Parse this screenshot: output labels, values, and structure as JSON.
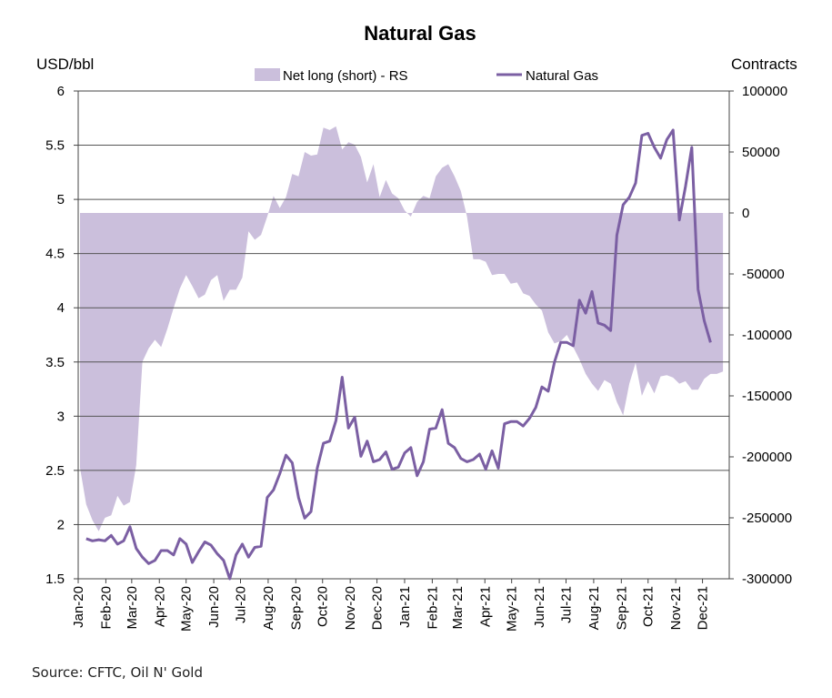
{
  "chart_data": {
    "type": "area+line",
    "title": "Natural Gas",
    "source": "Source: CFTC, Oil N' Gold",
    "left_axis": {
      "label": "USD/bbl",
      "range": [
        1.5,
        6
      ],
      "ticks": [
        "1.5",
        "2",
        "2.5",
        "3",
        "3.5",
        "4",
        "4.5",
        "5",
        "5.5",
        "6"
      ]
    },
    "right_axis": {
      "label": "Contracts",
      "range": [
        -300000,
        100000
      ],
      "ticks": [
        "-300000",
        "-250000",
        "-200000",
        "-150000",
        "-100000",
        "-50000",
        "0",
        "50000",
        "100000"
      ]
    },
    "x_axis": {
      "range": [
        "2020-01-01",
        "2021-12-31"
      ],
      "labels": [
        "Jan-20",
        "Feb-20",
        "Mar-20",
        "Apr-20",
        "May-20",
        "Jun-20",
        "Jul-20",
        "Aug-20",
        "Sep-20",
        "Oct-20",
        "Nov-20",
        "Dec-20",
        "Jan-21",
        "Feb-21",
        "Mar-21",
        "Apr-21",
        "May-21",
        "Jun-21",
        "Jul-21",
        "Aug-21",
        "Sep-21",
        "Oct-21",
        "Nov-21",
        "Dec-21"
      ]
    },
    "grid": "horizontal",
    "legend_position": "top",
    "colors": {
      "area": "#cbbfdc",
      "line": "#7b5fa3",
      "grid": "#555555"
    },
    "series": [
      {
        "name": "Net long (short) - RS",
        "type": "area",
        "axis": "right",
        "points": [
          [
            "2020-01-03",
            -209000
          ],
          [
            "2020-01-10",
            -239000
          ],
          [
            "2020-01-17",
            -252000
          ],
          [
            "2020-01-24",
            -261000
          ],
          [
            "2020-01-31",
            -250000
          ],
          [
            "2020-02-07",
            -248000
          ],
          [
            "2020-02-14",
            -232000
          ],
          [
            "2020-02-21",
            -240000
          ],
          [
            "2020-02-28",
            -237000
          ],
          [
            "2020-03-06",
            -207000
          ],
          [
            "2020-03-13",
            -122000
          ],
          [
            "2020-03-20",
            -111000
          ],
          [
            "2020-03-27",
            -104000
          ],
          [
            "2020-04-03",
            -110000
          ],
          [
            "2020-04-10",
            -95000
          ],
          [
            "2020-04-17",
            -78000
          ],
          [
            "2020-04-24",
            -62000
          ],
          [
            "2020-05-01",
            -51000
          ],
          [
            "2020-05-08",
            -60000
          ],
          [
            "2020-05-15",
            -70000
          ],
          [
            "2020-05-22",
            -67000
          ],
          [
            "2020-05-29",
            -55000
          ],
          [
            "2020-06-05",
            -51000
          ],
          [
            "2020-06-12",
            -72000
          ],
          [
            "2020-06-19",
            -63000
          ],
          [
            "2020-06-26",
            -63000
          ],
          [
            "2020-07-03",
            -53000
          ],
          [
            "2020-07-10",
            -15000
          ],
          [
            "2020-07-17",
            -22000
          ],
          [
            "2020-07-24",
            -18000
          ],
          [
            "2020-07-31",
            -3000
          ],
          [
            "2020-08-07",
            14000
          ],
          [
            "2020-08-14",
            4000
          ],
          [
            "2020-08-21",
            13000
          ],
          [
            "2020-08-28",
            32000
          ],
          [
            "2020-09-04",
            30000
          ],
          [
            "2020-09-11",
            50000
          ],
          [
            "2020-09-18",
            47000
          ],
          [
            "2020-09-25",
            48000
          ],
          [
            "2020-10-02",
            70000
          ],
          [
            "2020-10-09",
            68000
          ],
          [
            "2020-10-16",
            71000
          ],
          [
            "2020-10-23",
            52000
          ],
          [
            "2020-10-30",
            58000
          ],
          [
            "2020-11-06",
            56000
          ],
          [
            "2020-11-13",
            46000
          ],
          [
            "2020-11-20",
            25000
          ],
          [
            "2020-11-27",
            40000
          ],
          [
            "2020-12-04",
            13000
          ],
          [
            "2020-12-11",
            27000
          ],
          [
            "2020-12-18",
            16000
          ],
          [
            "2020-12-25",
            12000
          ],
          [
            "2021-01-01",
            2000
          ],
          [
            "2021-01-08",
            -3000
          ],
          [
            "2021-01-15",
            9000
          ],
          [
            "2021-01-22",
            14000
          ],
          [
            "2021-01-29",
            12000
          ],
          [
            "2021-02-05",
            30000
          ],
          [
            "2021-02-12",
            37000
          ],
          [
            "2021-02-19",
            40000
          ],
          [
            "2021-02-26",
            30000
          ],
          [
            "2021-03-05",
            18000
          ],
          [
            "2021-03-12",
            -3000
          ],
          [
            "2021-03-19",
            -38000
          ],
          [
            "2021-03-26",
            -38000
          ],
          [
            "2021-04-02",
            -40000
          ],
          [
            "2021-04-09",
            -51000
          ],
          [
            "2021-04-16",
            -50000
          ],
          [
            "2021-04-23",
            -50000
          ],
          [
            "2021-04-30",
            -58000
          ],
          [
            "2021-05-07",
            -57000
          ],
          [
            "2021-05-14",
            -66000
          ],
          [
            "2021-05-21",
            -68000
          ],
          [
            "2021-05-28",
            -75000
          ],
          [
            "2021-06-04",
            -80000
          ],
          [
            "2021-06-11",
            -98000
          ],
          [
            "2021-06-18",
            -107000
          ],
          [
            "2021-06-25",
            -105000
          ],
          [
            "2021-07-02",
            -100000
          ],
          [
            "2021-07-09",
            -110000
          ],
          [
            "2021-07-16",
            -120000
          ],
          [
            "2021-07-23",
            -132000
          ],
          [
            "2021-07-30",
            -140000
          ],
          [
            "2021-08-06",
            -146000
          ],
          [
            "2021-08-13",
            -137000
          ],
          [
            "2021-08-20",
            -140000
          ],
          [
            "2021-08-27",
            -155000
          ],
          [
            "2021-09-03",
            -166000
          ],
          [
            "2021-09-10",
            -140000
          ],
          [
            "2021-09-17",
            -123000
          ],
          [
            "2021-09-24",
            -150000
          ],
          [
            "2021-10-01",
            -138000
          ],
          [
            "2021-10-08",
            -148000
          ],
          [
            "2021-10-15",
            -134000
          ],
          [
            "2021-10-22",
            -133000
          ],
          [
            "2021-10-29",
            -135000
          ],
          [
            "2021-11-05",
            -140000
          ],
          [
            "2021-11-12",
            -138000
          ],
          [
            "2021-11-19",
            -145000
          ],
          [
            "2021-11-26",
            -145000
          ],
          [
            "2021-12-03",
            -136000
          ],
          [
            "2021-12-10",
            -132000
          ],
          [
            "2021-12-17",
            -132000
          ],
          [
            "2021-12-24",
            -130000
          ]
        ]
      },
      {
        "name": "Natural Gas",
        "type": "line",
        "axis": "left",
        "points": [
          [
            "2020-01-10",
            1.87
          ],
          [
            "2020-01-17",
            1.85
          ],
          [
            "2020-01-24",
            1.86
          ],
          [
            "2020-01-31",
            1.85
          ],
          [
            "2020-02-07",
            1.9
          ],
          [
            "2020-02-14",
            1.82
          ],
          [
            "2020-02-21",
            1.85
          ],
          [
            "2020-02-28",
            1.98
          ],
          [
            "2020-03-06",
            1.78
          ],
          [
            "2020-03-13",
            1.7
          ],
          [
            "2020-03-20",
            1.64
          ],
          [
            "2020-03-27",
            1.67
          ],
          [
            "2020-04-03",
            1.76
          ],
          [
            "2020-04-10",
            1.76
          ],
          [
            "2020-04-17",
            1.72
          ],
          [
            "2020-04-24",
            1.87
          ],
          [
            "2020-05-01",
            1.82
          ],
          [
            "2020-05-08",
            1.65
          ],
          [
            "2020-05-15",
            1.75
          ],
          [
            "2020-05-22",
            1.84
          ],
          [
            "2020-05-29",
            1.81
          ],
          [
            "2020-06-05",
            1.73
          ],
          [
            "2020-06-12",
            1.67
          ],
          [
            "2020-06-19",
            1.5
          ],
          [
            "2020-06-26",
            1.72
          ],
          [
            "2020-07-03",
            1.82
          ],
          [
            "2020-07-10",
            1.7
          ],
          [
            "2020-07-17",
            1.79
          ],
          [
            "2020-07-24",
            1.8
          ],
          [
            "2020-07-31",
            2.25
          ],
          [
            "2020-08-07",
            2.32
          ],
          [
            "2020-08-14",
            2.47
          ],
          [
            "2020-08-21",
            2.64
          ],
          [
            "2020-08-28",
            2.57
          ],
          [
            "2020-09-04",
            2.25
          ],
          [
            "2020-09-11",
            2.06
          ],
          [
            "2020-09-18",
            2.12
          ],
          [
            "2020-09-25",
            2.52
          ],
          [
            "2020-10-02",
            2.75
          ],
          [
            "2020-10-09",
            2.77
          ],
          [
            "2020-10-16",
            2.96
          ],
          [
            "2020-10-23",
            3.36
          ],
          [
            "2020-10-30",
            2.89
          ],
          [
            "2020-11-06",
            2.99
          ],
          [
            "2020-11-13",
            2.63
          ],
          [
            "2020-11-20",
            2.77
          ],
          [
            "2020-11-27",
            2.58
          ],
          [
            "2020-12-04",
            2.6
          ],
          [
            "2020-12-11",
            2.67
          ],
          [
            "2020-12-18",
            2.51
          ],
          [
            "2020-12-25",
            2.53
          ],
          [
            "2021-01-01",
            2.66
          ],
          [
            "2021-01-08",
            2.71
          ],
          [
            "2021-01-15",
            2.45
          ],
          [
            "2021-01-22",
            2.58
          ],
          [
            "2021-01-29",
            2.88
          ],
          [
            "2021-02-05",
            2.89
          ],
          [
            "2021-02-12",
            3.06
          ],
          [
            "2021-02-19",
            2.75
          ],
          [
            "2021-02-26",
            2.71
          ],
          [
            "2021-03-05",
            2.61
          ],
          [
            "2021-03-12",
            2.58
          ],
          [
            "2021-03-19",
            2.6
          ],
          [
            "2021-03-26",
            2.65
          ],
          [
            "2021-04-02",
            2.51
          ],
          [
            "2021-04-09",
            2.68
          ],
          [
            "2021-04-16",
            2.52
          ],
          [
            "2021-04-23",
            2.93
          ],
          [
            "2021-04-30",
            2.95
          ],
          [
            "2021-05-07",
            2.95
          ],
          [
            "2021-05-14",
            2.91
          ],
          [
            "2021-05-21",
            2.98
          ],
          [
            "2021-05-28",
            3.08
          ],
          [
            "2021-06-04",
            3.27
          ],
          [
            "2021-06-11",
            3.23
          ],
          [
            "2021-06-18",
            3.5
          ],
          [
            "2021-06-25",
            3.68
          ],
          [
            "2021-07-02",
            3.68
          ],
          [
            "2021-07-09",
            3.65
          ],
          [
            "2021-07-16",
            4.07
          ],
          [
            "2021-07-23",
            3.95
          ],
          [
            "2021-07-30",
            4.15
          ],
          [
            "2021-08-06",
            3.86
          ],
          [
            "2021-08-13",
            3.84
          ],
          [
            "2021-08-20",
            3.79
          ],
          [
            "2021-08-27",
            4.67
          ],
          [
            "2021-09-03",
            4.95
          ],
          [
            "2021-09-10",
            5.02
          ],
          [
            "2021-09-17",
            5.15
          ],
          [
            "2021-09-24",
            5.59
          ],
          [
            "2021-10-01",
            5.61
          ],
          [
            "2021-10-08",
            5.48
          ],
          [
            "2021-10-15",
            5.38
          ],
          [
            "2021-10-22",
            5.55
          ],
          [
            "2021-10-29",
            5.64
          ],
          [
            "2021-11-05",
            4.81
          ],
          [
            "2021-11-12",
            5.12
          ],
          [
            "2021-11-19",
            5.48
          ],
          [
            "2021-11-26",
            4.17
          ],
          [
            "2021-12-03",
            3.88
          ],
          [
            "2021-12-10",
            3.68
          ]
        ]
      }
    ]
  }
}
